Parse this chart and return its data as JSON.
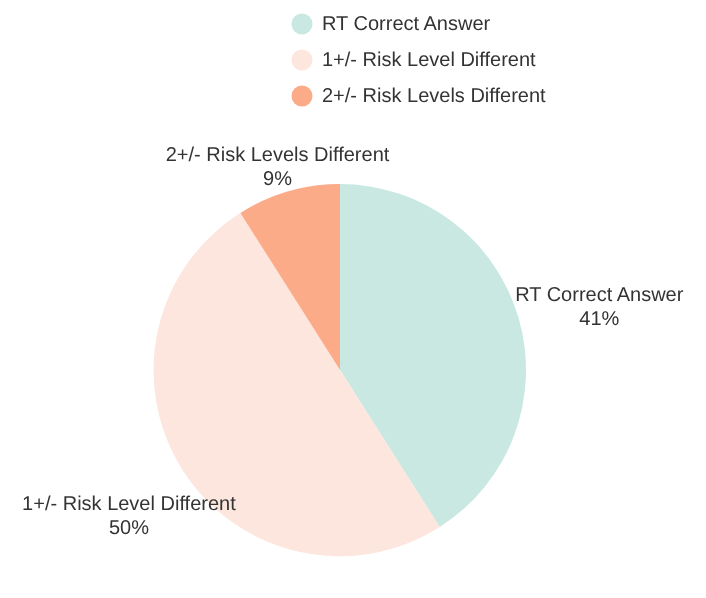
{
  "chart_data": {
    "type": "pie",
    "categories": [
      "RT Correct Answer",
      "1+/- Risk Level Different",
      "2+/- Risk Levels Different"
    ],
    "values": [
      41,
      50,
      9
    ],
    "colors": [
      "#c8e8e1",
      "#fde6dd",
      "#fcab89"
    ],
    "value_labels": [
      "41%",
      "50%",
      "9%"
    ],
    "legend": "top"
  }
}
